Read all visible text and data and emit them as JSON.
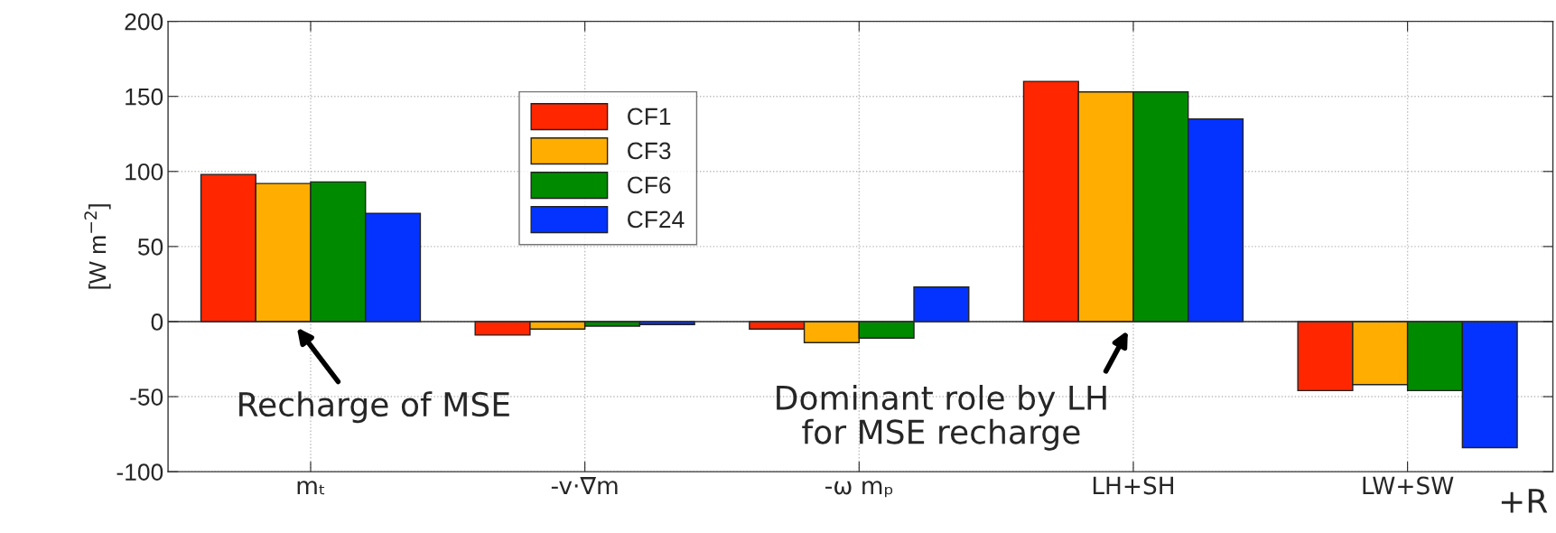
{
  "chart_data": {
    "type": "bar",
    "ylabel": "[W m$^{−2}$]",
    "categories": [
      "mₜ",
      "-v·∇m",
      "-ω mₚ",
      "LH+SH",
      "LW+SW"
    ],
    "series": [
      {
        "name": "CF1",
        "color": "#ff2600",
        "values": [
          98,
          -9,
          -5,
          160,
          -46
        ]
      },
      {
        "name": "CF3",
        "color": "#ffae00",
        "values": [
          92,
          -5,
          -14,
          153,
          -42
        ]
      },
      {
        "name": "CF6",
        "color": "#008a00",
        "values": [
          93,
          -3,
          -11,
          153,
          -46
        ]
      },
      {
        "name": "CF24",
        "color": "#0433ff",
        "values": [
          72,
          -2,
          23,
          135,
          -84
        ]
      }
    ],
    "ylim": [
      -100,
      200
    ],
    "yticks": [
      -100,
      -50,
      0,
      50,
      100,
      150,
      200
    ],
    "grid": true,
    "legend": "top",
    "annotations": [
      {
        "text": "Recharge of MSE",
        "x": "mₜ",
        "y": 0
      },
      {
        "text": "Dominant role by LH\nfor MSE recharge",
        "x": "LH+SH",
        "y": 0
      },
      "+R"
    ]
  }
}
